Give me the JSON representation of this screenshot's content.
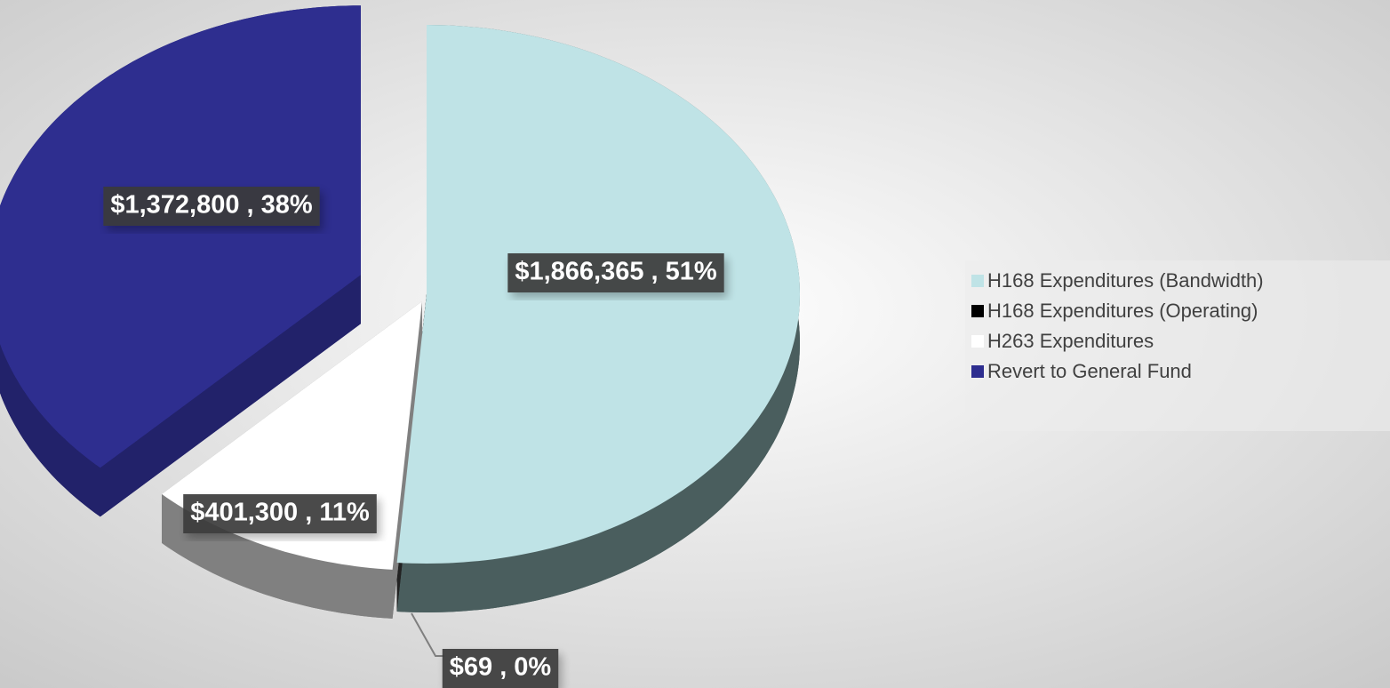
{
  "chart_data": {
    "type": "pie",
    "categories": [
      "H168 Expenditures (Bandwidth)",
      "H168 Expenditures (Operating)",
      "H263 Expenditures",
      "Revert to General Fund"
    ],
    "values": [
      1866365,
      69,
      401300,
      1372800
    ],
    "value_labels": [
      "$1,866,365 , 51%",
      "$69 , 0%",
      "$401,300 , 11%",
      "$1,372,800 , 38%"
    ],
    "colors": [
      "#bfe3e6",
      "#000000",
      "#ffffff",
      "#2e2e8f"
    ],
    "legend": "right"
  }
}
